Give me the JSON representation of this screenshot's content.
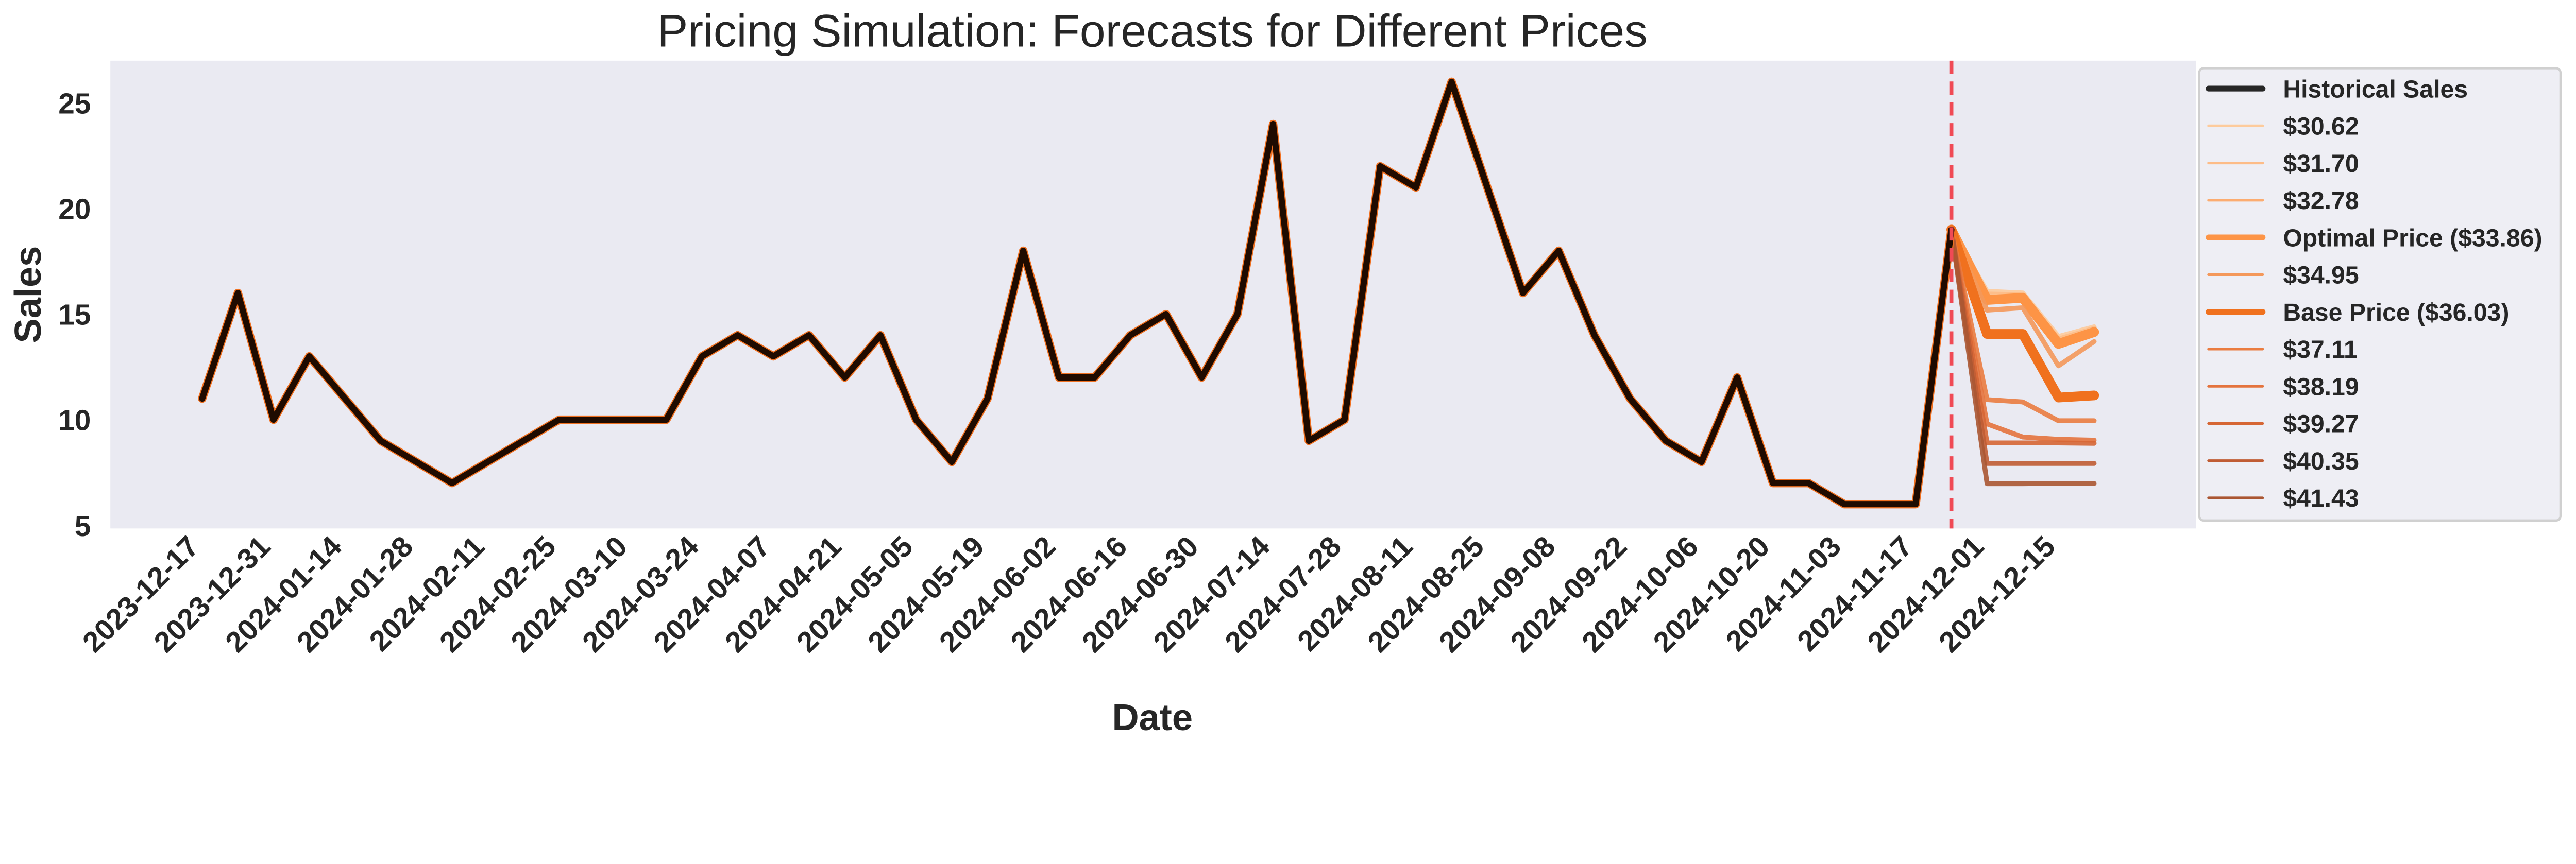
{
  "chart_data": {
    "type": "line",
    "title": "Pricing Simulation: Forecasts for Different Prices",
    "xlabel": "Date",
    "ylabel": "Sales",
    "ylim": [
      4.85,
      27
    ],
    "xlim": [
      "2023-11-30",
      "2025-01-12"
    ],
    "grid": false,
    "legend_placement": "outside-right",
    "x_ticks": [
      "2023-12-17",
      "2023-12-31",
      "2024-01-14",
      "2024-01-28",
      "2024-02-11",
      "2024-02-25",
      "2024-03-10",
      "2024-03-24",
      "2024-04-07",
      "2024-04-21",
      "2024-05-05",
      "2024-05-19",
      "2024-06-02",
      "2024-06-16",
      "2024-06-30",
      "2024-07-14",
      "2024-07-28",
      "2024-08-11",
      "2024-08-25",
      "2024-09-08",
      "2024-09-22",
      "2024-10-06",
      "2024-10-20",
      "2024-11-03",
      "2024-11-17",
      "2024-12-01",
      "2024-12-15"
    ],
    "y_ticks": [
      5,
      10,
      15,
      20,
      25
    ],
    "forecast_start_line": {
      "date": "2024-11-25",
      "color": "#f04a55",
      "style": "dashed"
    },
    "historical": {
      "name": "Historical Sales",
      "color": "#1f0b00",
      "start_date": "2023-12-18",
      "frequency": "weekly",
      "values": [
        11,
        16,
        10,
        13,
        11,
        9,
        8,
        7,
        8,
        9,
        10,
        10,
        10,
        10,
        13,
        14,
        13,
        14,
        12,
        14,
        10,
        8,
        11,
        18,
        12,
        12,
        14,
        15,
        12,
        15,
        24,
        9,
        10,
        22,
        21,
        26,
        21,
        16,
        18,
        14,
        11,
        9,
        8,
        12,
        7,
        7,
        6,
        6,
        6,
        19
      ]
    },
    "forecast_dates": [
      "2024-11-25",
      "2024-12-02",
      "2024-12-09",
      "2024-12-16",
      "2024-12-23"
    ],
    "series": [
      {
        "name": "$30.62",
        "color": "#fdcb9c",
        "thick": false,
        "values": [
          19,
          16.08,
          16.0,
          13.94,
          14.4
        ]
      },
      {
        "name": "$31.70",
        "color": "#fdbc87",
        "thick": false,
        "values": [
          19,
          15.95,
          15.92,
          13.82,
          14.32
        ]
      },
      {
        "name": "$32.78",
        "color": "#fcac70",
        "thick": false,
        "values": [
          19,
          15.8,
          15.85,
          13.7,
          14.25
        ]
      },
      {
        "name": "Optimal Price ($33.86)",
        "color": "#fd9446",
        "thick": true,
        "values": [
          19,
          15.67,
          15.77,
          13.59,
          14.15
        ]
      },
      {
        "name": "$34.95",
        "color": "#f4985a",
        "thick": false,
        "values": [
          19,
          15.19,
          15.3,
          12.55,
          13.7
        ]
      },
      {
        "name": "Base Price ($36.03)",
        "color": "#f0711e",
        "thick": true,
        "values": [
          19,
          14.06,
          14.06,
          11.05,
          11.15
        ]
      },
      {
        "name": "$37.11",
        "color": "#ea7c40",
        "thick": false,
        "values": [
          19,
          10.95,
          10.84,
          9.95,
          9.95
        ]
      },
      {
        "name": "$38.19",
        "color": "#e4733d",
        "thick": false,
        "values": [
          19,
          9.8,
          9.18,
          9.07,
          9.03
        ]
      },
      {
        "name": "$39.27",
        "color": "#d66634",
        "thick": false,
        "values": [
          19,
          8.9,
          8.9,
          8.9,
          8.88
        ]
      },
      {
        "name": "$40.35",
        "color": "#c05c33",
        "thick": false,
        "values": [
          19,
          7.93,
          7.93,
          7.93,
          7.93
        ]
      },
      {
        "name": "$41.43",
        "color": "#aa5632",
        "thick": false,
        "values": [
          19,
          6.97,
          6.97,
          6.98,
          6.98
        ]
      }
    ],
    "plot_background": "#eaeaf2"
  }
}
